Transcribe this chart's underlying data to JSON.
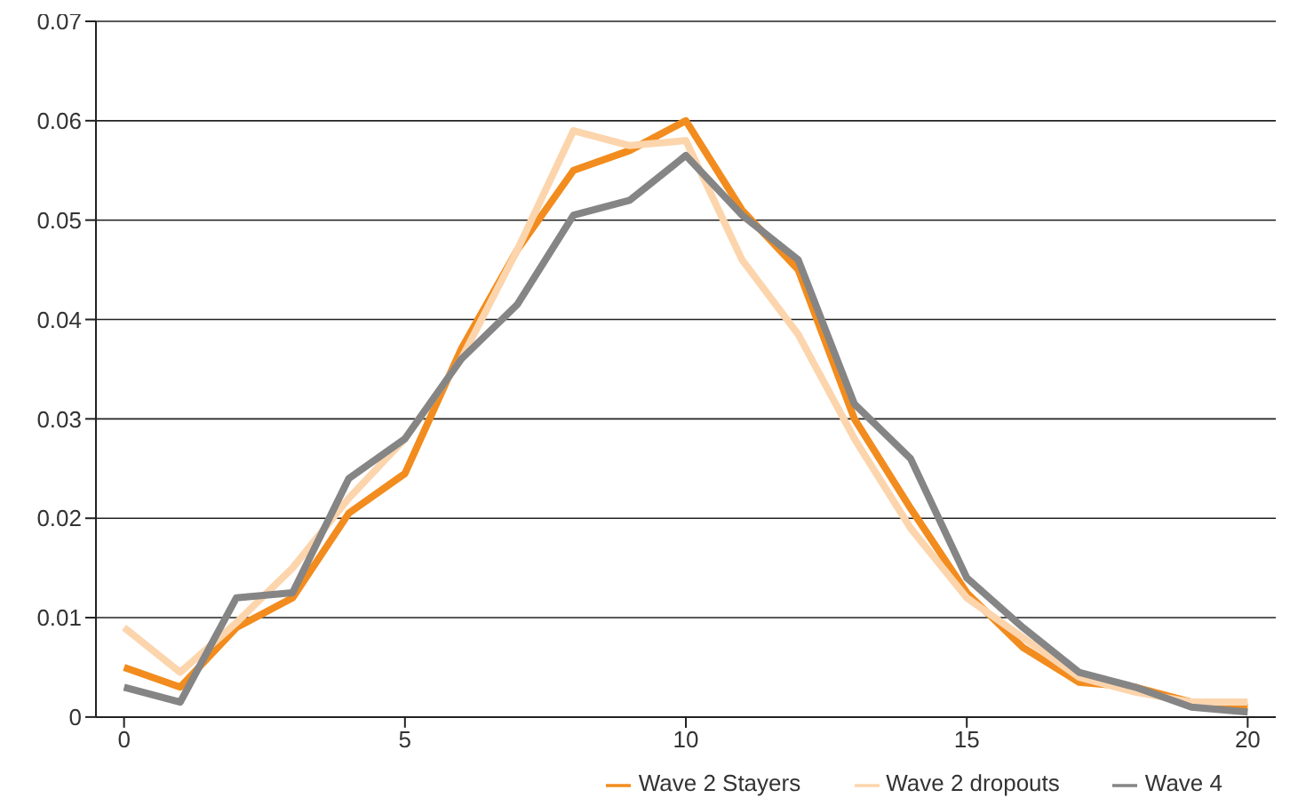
{
  "chart_data": {
    "type": "line",
    "x": [
      0,
      1,
      2,
      3,
      4,
      5,
      6,
      7,
      8,
      9,
      10,
      11,
      12,
      13,
      14,
      15,
      16,
      17,
      18,
      19,
      20
    ],
    "series": [
      {
        "name": "Wave 2 Stayers",
        "color": "#f28c1e",
        "values": [
          0.005,
          0.003,
          0.009,
          0.012,
          0.0205,
          0.0245,
          0.037,
          0.047,
          0.055,
          0.057,
          0.06,
          0.051,
          0.045,
          0.03,
          0.021,
          0.0125,
          0.007,
          0.0035,
          0.003,
          0.0015,
          0.001
        ]
      },
      {
        "name": "Wave 2 dropouts",
        "color": "#fcd5ad",
        "values": [
          0.009,
          0.0045,
          0.0095,
          0.015,
          0.022,
          0.028,
          0.036,
          0.047,
          0.059,
          0.0575,
          0.058,
          0.046,
          0.0385,
          0.028,
          0.019,
          0.012,
          0.008,
          0.004,
          0.0025,
          0.0015,
          0.0015
        ]
      },
      {
        "name": "Wave 4",
        "color": "#858585",
        "values": [
          0.003,
          0.0015,
          0.012,
          0.0125,
          0.024,
          0.028,
          0.036,
          0.0415,
          0.0505,
          0.052,
          0.0565,
          0.0505,
          0.046,
          0.0315,
          0.026,
          0.014,
          0.009,
          0.0045,
          0.003,
          0.001,
          0.0005
        ]
      }
    ],
    "xlim": [
      -0.5,
      20.5
    ],
    "xticks": [
      0,
      5,
      10,
      15,
      20
    ],
    "ylim": [
      0,
      0.07
    ],
    "yticks": [
      0,
      0.01,
      0.02,
      0.03,
      0.04,
      0.05,
      0.06,
      0.07
    ],
    "grid": "y",
    "legend": "bottom",
    "marker": "none",
    "line_style": "solid"
  }
}
